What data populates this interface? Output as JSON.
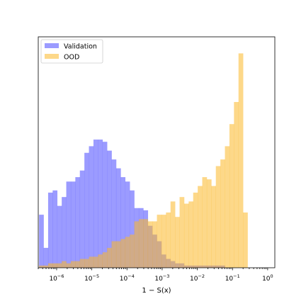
{
  "chart_data": {
    "type": "histogram",
    "xscale": "log",
    "xlabel": "1 − S(x)",
    "ylabel": "",
    "title": "",
    "xlim": [
      3e-07,
      1.6
    ],
    "ylim": [
      0,
      1
    ],
    "xticks": [
      {
        "value": 1e-06,
        "mant": "10",
        "exp": "−6"
      },
      {
        "value": 1e-05,
        "mant": "10",
        "exp": "−5"
      },
      {
        "value": 0.0001,
        "mant": "10",
        "exp": "−4"
      },
      {
        "value": 0.001,
        "mant": "10",
        "exp": "−3"
      },
      {
        "value": 0.01,
        "mant": "10",
        "exp": "−2"
      },
      {
        "value": 0.1,
        "mant": "10",
        "exp": "−1"
      },
      {
        "value": 1,
        "mant": "10",
        "exp": "0"
      }
    ],
    "legend_position": "upper-left",
    "bins_log10": {
      "start": -6.5,
      "width": 0.1289,
      "count": 46
    },
    "series": [
      {
        "name": "Validation",
        "color": "#6666ff",
        "alpha": 0.65,
        "values": [
          0.24,
          0.09,
          0.34,
          0.35,
          0.28,
          0.32,
          0.39,
          0.39,
          0.41,
          0.44,
          0.52,
          0.55,
          0.58,
          0.58,
          0.57,
          0.53,
          0.49,
          0.45,
          0.41,
          0.39,
          0.35,
          0.27,
          0.27,
          0.26,
          0.19,
          0.15,
          0.12,
          0.06,
          0.04,
          0.03,
          0.02,
          0.02,
          0.01,
          0.01,
          0.01,
          0.01,
          0.01,
          0.01,
          0.01,
          0.01,
          0.01,
          0.0,
          0.0,
          0.0,
          0.0,
          0.0
        ]
      },
      {
        "name": "OOD",
        "color": "#fbb828",
        "alpha": 0.55,
        "values": [
          0.01,
          0.01,
          0.02,
          0.02,
          0.02,
          0.03,
          0.02,
          0.03,
          0.03,
          0.04,
          0.04,
          0.05,
          0.05,
          0.06,
          0.07,
          0.09,
          0.12,
          0.12,
          0.13,
          0.14,
          0.15,
          0.21,
          0.22,
          0.22,
          0.21,
          0.21,
          0.24,
          0.24,
          0.25,
          0.3,
          0.23,
          0.32,
          0.29,
          0.3,
          0.34,
          0.37,
          0.41,
          0.4,
          0.37,
          0.46,
          0.49,
          0.55,
          0.65,
          0.75,
          0.97,
          0.25
        ]
      }
    ]
  }
}
